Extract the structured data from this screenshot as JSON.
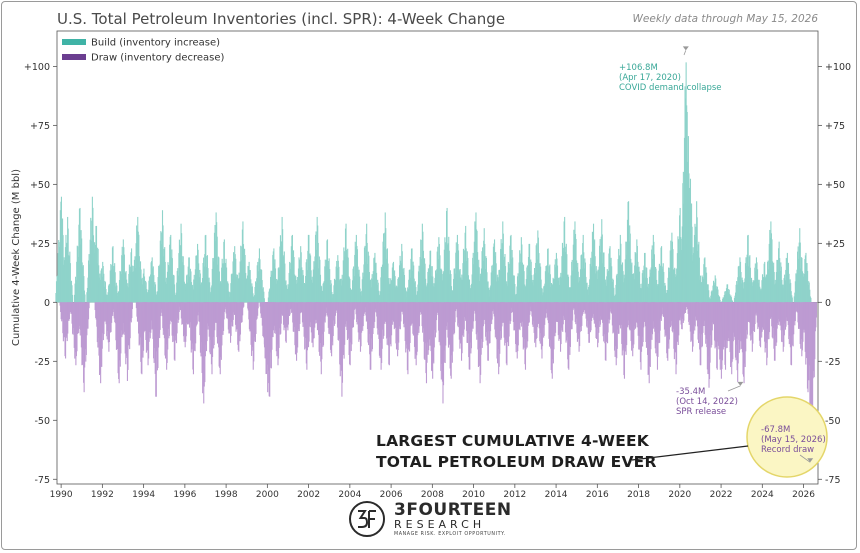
{
  "title": "U.S. Total Petroleum Inventories (incl. SPR): 4-Week Change",
  "subtitle": "Weekly data through May 15, 2026",
  "brand": {
    "name": "3FOURTEEN",
    "sub": "RESEARCH",
    "tagline": "MANAGE RISK. EXPLOIT OPPORTUNITY.",
    "logo_text": "3F"
  },
  "colors": {
    "build": "#8fd3ca",
    "draw": "#bd9bd2",
    "build_legend": "#3fb3a6",
    "draw_legend": "#6b3e90",
    "build_text": "#3aa898",
    "draw_text": "#7a4e9a",
    "axis": "#555555",
    "callout_fill": "#fbf6c4",
    "callout_stroke": "#e4d66a"
  },
  "chart_data": {
    "type": "bar",
    "ylabel": "Cumulative 4-Week Change (M bbl)",
    "xlabel": "",
    "ylim": [
      -77,
      115
    ],
    "xlim": [
      1989.8,
      2026.7
    ],
    "yticks": [
      {
        "value": 100,
        "label": "+100"
      },
      {
        "value": 75,
        "label": "+75"
      },
      {
        "value": 50,
        "label": "+50"
      },
      {
        "value": 25,
        "label": "+25"
      },
      {
        "value": 0,
        "label": "0"
      },
      {
        "value": -25,
        "label": "-25"
      },
      {
        "value": -50,
        "label": "-50"
      },
      {
        "value": -75,
        "label": "-75"
      }
    ],
    "xticks": [
      "1990",
      "1992",
      "1994",
      "1996",
      "1998",
      "2000",
      "2002",
      "2004",
      "2006",
      "2008",
      "2010",
      "2012",
      "2014",
      "2016",
      "2018",
      "2020",
      "2022",
      "2024",
      "2026"
    ],
    "legend": {
      "position": "top-left",
      "entries": [
        {
          "label": "Build (inventory increase)",
          "series": "build"
        },
        {
          "label": "Draw (inventory decrease)",
          "series": "draw"
        }
      ]
    },
    "series": [
      {
        "name": "Build (inventory increase)",
        "values": [
          [
            1990.0,
            47
          ],
          [
            1990.3,
            38
          ],
          [
            1990.9,
            42
          ],
          [
            1991.5,
            47
          ],
          [
            1991.7,
            34
          ],
          [
            1992.0,
            18
          ],
          [
            1992.5,
            25
          ],
          [
            1993.0,
            28
          ],
          [
            1993.4,
            24
          ],
          [
            1993.7,
            38
          ],
          [
            1994.0,
            15
          ],
          [
            1994.4,
            20
          ],
          [
            1994.9,
            41
          ],
          [
            1995.3,
            30
          ],
          [
            1995.8,
            35
          ],
          [
            1996.2,
            20
          ],
          [
            1996.6,
            26
          ],
          [
            1997.0,
            30
          ],
          [
            1997.5,
            40
          ],
          [
            1997.9,
            28
          ],
          [
            1998.4,
            25
          ],
          [
            1998.8,
            36
          ],
          [
            1999.1,
            18
          ],
          [
            1999.6,
            24
          ],
          [
            2000.3,
            24
          ],
          [
            2000.7,
            38
          ],
          [
            2001.2,
            30
          ],
          [
            2001.6,
            25
          ],
          [
            2002.0,
            30
          ],
          [
            2002.4,
            38
          ],
          [
            2002.9,
            28
          ],
          [
            2003.4,
            21
          ],
          [
            2003.8,
            35
          ],
          [
            2004.3,
            30
          ],
          [
            2004.8,
            35
          ],
          [
            2005.2,
            22
          ],
          [
            2005.7,
            40
          ],
          [
            2006.1,
            18
          ],
          [
            2006.5,
            26
          ],
          [
            2007.0,
            24
          ],
          [
            2007.5,
            35
          ],
          [
            2007.9,
            23
          ],
          [
            2008.3,
            29
          ],
          [
            2008.7,
            42
          ],
          [
            2009.2,
            30
          ],
          [
            2009.6,
            34
          ],
          [
            2010.1,
            40
          ],
          [
            2010.5,
            33
          ],
          [
            2011.0,
            28
          ],
          [
            2011.4,
            36
          ],
          [
            2011.8,
            30
          ],
          [
            2012.3,
            29
          ],
          [
            2012.7,
            26
          ],
          [
            2013.1,
            32
          ],
          [
            2013.6,
            24
          ],
          [
            2014.0,
            22
          ],
          [
            2014.4,
            38
          ],
          [
            2014.9,
            36
          ],
          [
            2015.3,
            30
          ],
          [
            2015.8,
            35
          ],
          [
            2016.2,
            37
          ],
          [
            2016.6,
            25
          ],
          [
            2017.1,
            30
          ],
          [
            2017.5,
            45
          ],
          [
            2017.9,
            28
          ],
          [
            2018.3,
            22
          ],
          [
            2018.7,
            30
          ],
          [
            2019.1,
            25
          ],
          [
            2019.6,
            31
          ],
          [
            2020.0,
            42
          ],
          [
            2020.29,
            106.8
          ],
          [
            2020.4,
            74
          ],
          [
            2020.5,
            55
          ],
          [
            2020.8,
            45
          ],
          [
            2021.2,
            20
          ],
          [
            2021.7,
            12
          ],
          [
            2022.3,
            8
          ],
          [
            2022.9,
            20
          ],
          [
            2023.3,
            30
          ],
          [
            2023.7,
            20
          ],
          [
            2024.1,
            18
          ],
          [
            2024.4,
            36
          ],
          [
            2024.8,
            27
          ],
          [
            2025.2,
            22
          ],
          [
            2025.8,
            33
          ],
          [
            2026.1,
            22
          ]
        ]
      },
      {
        "name": "Draw (inventory decrease)",
        "values": [
          [
            1990.2,
            -25
          ],
          [
            1990.7,
            -28
          ],
          [
            1991.1,
            -40
          ],
          [
            1991.9,
            -36
          ],
          [
            1992.3,
            -22
          ],
          [
            1992.8,
            -36
          ],
          [
            1993.2,
            -35
          ],
          [
            1993.9,
            -32
          ],
          [
            1994.2,
            -28
          ],
          [
            1994.6,
            -42
          ],
          [
            1995.1,
            -30
          ],
          [
            1995.5,
            -26
          ],
          [
            1996.0,
            -20
          ],
          [
            1996.4,
            -32
          ],
          [
            1996.9,
            -45
          ],
          [
            1997.3,
            -32
          ],
          [
            1997.7,
            -32
          ],
          [
            1998.2,
            -18
          ],
          [
            1998.6,
            -22
          ],
          [
            1999.3,
            -30
          ],
          [
            1999.9,
            -25
          ],
          [
            2000.0,
            -40
          ],
          [
            2000.1,
            -42
          ],
          [
            2000.5,
            -28
          ],
          [
            2000.9,
            -18
          ],
          [
            2001.4,
            -26
          ],
          [
            2001.9,
            -30
          ],
          [
            2002.2,
            -20
          ],
          [
            2002.6,
            -32
          ],
          [
            2003.1,
            -24
          ],
          [
            2003.6,
            -42
          ],
          [
            2004.0,
            -28
          ],
          [
            2004.5,
            -22
          ],
          [
            2005.0,
            -30
          ],
          [
            2005.5,
            -30
          ],
          [
            2005.9,
            -28
          ],
          [
            2006.3,
            -24
          ],
          [
            2006.8,
            -32
          ],
          [
            2007.2,
            -28
          ],
          [
            2007.7,
            -36
          ],
          [
            2008.0,
            -34
          ],
          [
            2008.5,
            -45
          ],
          [
            2008.9,
            -34
          ],
          [
            2009.4,
            -26
          ],
          [
            2009.8,
            -30
          ],
          [
            2010.3,
            -36
          ],
          [
            2010.7,
            -26
          ],
          [
            2011.2,
            -32
          ],
          [
            2011.6,
            -28
          ],
          [
            2012.1,
            -25
          ],
          [
            2012.5,
            -30
          ],
          [
            2013.0,
            -20
          ],
          [
            2013.3,
            -25
          ],
          [
            2013.8,
            -34
          ],
          [
            2014.2,
            -22
          ],
          [
            2014.6,
            -30
          ],
          [
            2015.1,
            -22
          ],
          [
            2015.6,
            -18
          ],
          [
            2016.0,
            -20
          ],
          [
            2016.4,
            -26
          ],
          [
            2016.9,
            -28
          ],
          [
            2017.3,
            -34
          ],
          [
            2017.7,
            -24
          ],
          [
            2018.1,
            -30
          ],
          [
            2018.5,
            -36
          ],
          [
            2018.9,
            -30
          ],
          [
            2019.4,
            -26
          ],
          [
            2019.8,
            -32
          ],
          [
            2020.1,
            -12
          ],
          [
            2020.6,
            -22
          ],
          [
            2021.0,
            -28
          ],
          [
            2021.4,
            -38
          ],
          [
            2021.8,
            -30
          ],
          [
            2022.0,
            -34
          ],
          [
            2022.2,
            -30
          ],
          [
            2022.5,
            -32
          ],
          [
            2022.79,
            -35.4
          ],
          [
            2023.1,
            -36
          ],
          [
            2023.5,
            -22
          ],
          [
            2023.9,
            -20
          ],
          [
            2024.2,
            -28
          ],
          [
            2024.6,
            -26
          ],
          [
            2025.0,
            -22
          ],
          [
            2025.4,
            -28
          ],
          [
            2025.9,
            -24
          ],
          [
            2026.2,
            -40
          ],
          [
            2026.37,
            -67.8
          ]
        ]
      }
    ],
    "annotations": [
      {
        "lines": [
          "+106.8M",
          "(Apr 17, 2020)",
          "COVID demand collapse"
        ],
        "x": 2020.29,
        "y": 106.8,
        "series": "build"
      },
      {
        "lines": [
          "-35.4M",
          "(Oct 14, 2022)",
          "SPR release"
        ],
        "x": 2022.79,
        "y": -35.4,
        "series": "draw"
      },
      {
        "lines": [
          "-67.8M",
          "(May 15, 2026)",
          "Record draw"
        ],
        "x": 2026.37,
        "y": -67.8,
        "series": "draw"
      }
    ],
    "callout": [
      "LARGEST CUMULATIVE 4-WEEK",
      "TOTAL PETROLEUM DRAW EVER"
    ],
    "grid": false
  }
}
